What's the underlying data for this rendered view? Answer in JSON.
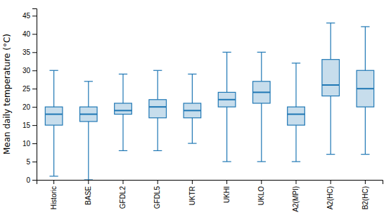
{
  "chart_data": {
    "type": "box",
    "categories": [
      "Historic",
      "BASE",
      "GFDL2",
      "GFDL5",
      "UKTR",
      "UKHI",
      "UKLO",
      "A2(MPI)",
      "A2(HC)",
      "B2(HC)"
    ],
    "boxes": [
      {
        "whislo": 1,
        "q1": 15,
        "med": 18,
        "q3": 20,
        "whishi": 30
      },
      {
        "whislo": 0,
        "q1": 16,
        "med": 18,
        "q3": 20,
        "whishi": 27
      },
      {
        "whislo": 8,
        "q1": 18,
        "med": 19,
        "q3": 21,
        "whishi": 29
      },
      {
        "whislo": 8,
        "q1": 17,
        "med": 20,
        "q3": 22,
        "whishi": 30
      },
      {
        "whislo": 10,
        "q1": 17,
        "med": 19,
        "q3": 21,
        "whishi": 29
      },
      {
        "whislo": 5,
        "q1": 20,
        "med": 22,
        "q3": 24,
        "whishi": 35
      },
      {
        "whislo": 5,
        "q1": 21,
        "med": 24,
        "q3": 27,
        "whishi": 35
      },
      {
        "whislo": 5,
        "q1": 15,
        "med": 18,
        "q3": 20,
        "whishi": 32
      },
      {
        "whislo": 7,
        "q1": 23,
        "med": 26,
        "q3": 33,
        "whishi": 43
      },
      {
        "whislo": 7,
        "q1": 20,
        "med": 25,
        "q3": 30,
        "whishi": 42
      }
    ],
    "ylabel": "Mean daily temperature (°C)",
    "ylim": [
      0,
      47
    ],
    "yticks": [
      0,
      5,
      10,
      15,
      20,
      25,
      30,
      35,
      40,
      45
    ],
    "grid": false
  }
}
